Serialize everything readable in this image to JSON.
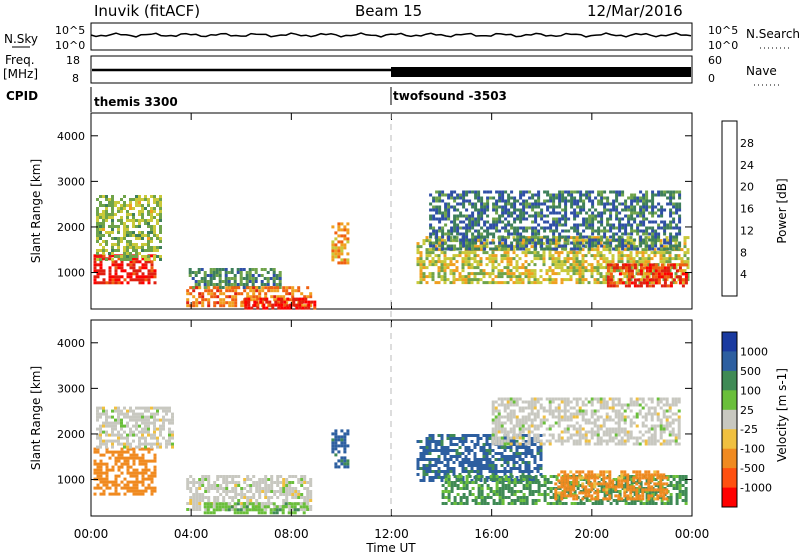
{
  "header": {
    "station": "Inuvik (fitACF)",
    "beam": "Beam 15",
    "date": "12/Mar/2016"
  },
  "top_panels": {
    "nsky_label": "N.Sky",
    "nsearch_label": "N.Search",
    "nsky_ticks": [
      "10^5",
      "10^0"
    ],
    "nsearch_ticks": [
      "10^5",
      "10^0"
    ],
    "freq_label": "Freq.",
    "freq_unit": "[MHz]",
    "freq_ticks": [
      "18",
      "8"
    ],
    "nave_label": "Nave",
    "nave_ticks": [
      "60",
      "0"
    ],
    "cpid_label": "CPID",
    "cpid_segments": [
      {
        "name": "themis 3300",
        "start_hour": 0,
        "end_hour": 12
      },
      {
        "name": "twofsound -3503",
        "start_hour": 12,
        "end_hour": 24
      }
    ]
  },
  "axes": {
    "x_ticks": [
      "00:00",
      "04:00",
      "08:00",
      "12:00",
      "16:00",
      "20:00",
      "00:00"
    ],
    "x_label": "Time UT",
    "y_label": "Slant Range [km]",
    "y_ticks": [
      "1000",
      "2000",
      "3000",
      "4000"
    ]
  },
  "power_colorbar": {
    "label": "Power [dB]",
    "ticks": [
      "4",
      "8",
      "12",
      "16",
      "20",
      "24",
      "28"
    ],
    "colors": [
      "#1a1aff",
      "#2f4fa6",
      "#3e7f5a",
      "#6fa34a",
      "#c9c93a",
      "#f0a020",
      "#f06010",
      "#e02010",
      "#ff0000"
    ]
  },
  "velocity_colorbar": {
    "label": "Velocity [m s-1]",
    "ticks": [
      "1000",
      "500",
      "100",
      "25",
      "-25",
      "-100",
      "-500",
      "-1000"
    ],
    "colors": [
      "#1a3aa0",
      "#2d5fa0",
      "#3f8a55",
      "#6abf3a",
      "#c8c8c0",
      "#f0c040",
      "#f08a20",
      "#ff5010",
      "#ff0000"
    ]
  },
  "chart_data": [
    {
      "type": "heatmap",
      "title": "Power",
      "x": {
        "unit": "hour UT",
        "range": [
          0,
          24
        ]
      },
      "y": {
        "unit": "km",
        "range": [
          200,
          4500
        ]
      },
      "colorbar_range_db": [
        0,
        32
      ],
      "regions": [
        {
          "t0": 0.1,
          "t1": 2.6,
          "r0": 800,
          "r1": 1400,
          "level": 28
        },
        {
          "t0": 0.2,
          "t1": 2.8,
          "r0": 1300,
          "r1": 2700,
          "level": 14
        },
        {
          "t0": 3.9,
          "t1": 7.6,
          "r0": 700,
          "r1": 1100,
          "level": 10
        },
        {
          "t0": 3.8,
          "t1": 8.8,
          "r0": 250,
          "r1": 700,
          "level": 22
        },
        {
          "t0": 6.0,
          "t1": 8.9,
          "r0": 250,
          "r1": 450,
          "level": 28
        },
        {
          "t0": 9.6,
          "t1": 10.2,
          "r0": 1200,
          "r1": 2100,
          "level": 20
        },
        {
          "t0": 13.0,
          "t1": 23.8,
          "r0": 800,
          "r1": 1800,
          "level": 16
        },
        {
          "t0": 13.5,
          "t1": 23.5,
          "r0": 1500,
          "r1": 2800,
          "level": 8
        },
        {
          "t0": 20.6,
          "t1": 23.8,
          "r0": 700,
          "r1": 1200,
          "level": 26
        }
      ]
    },
    {
      "type": "heatmap",
      "title": "Velocity",
      "x": {
        "unit": "hour UT",
        "range": [
          0,
          24
        ]
      },
      "y": {
        "unit": "km",
        "range": [
          200,
          4500
        ]
      },
      "regions": [
        {
          "t0": 0.1,
          "t1": 2.6,
          "r0": 700,
          "r1": 1700,
          "level": -300
        },
        {
          "t0": 0.2,
          "t1": 3.2,
          "r0": 1700,
          "r1": 2600,
          "level": 0
        },
        {
          "t0": 3.8,
          "t1": 8.8,
          "r0": 350,
          "r1": 1100,
          "level": 0
        },
        {
          "t0": 4.5,
          "t1": 8.8,
          "r0": 250,
          "r1": 500,
          "level": 80
        },
        {
          "t0": 9.6,
          "t1": 10.3,
          "r0": 1300,
          "r1": 2100,
          "level": 700
        },
        {
          "t0": 13.0,
          "t1": 18.0,
          "r0": 1000,
          "r1": 2000,
          "level": 700
        },
        {
          "t0": 14.0,
          "t1": 23.8,
          "r0": 500,
          "r1": 1100,
          "level": 120
        },
        {
          "t0": 16.0,
          "t1": 23.5,
          "r0": 1800,
          "r1": 2800,
          "level": 0
        },
        {
          "t0": 18.5,
          "t1": 23.0,
          "r0": 600,
          "r1": 1200,
          "level": -150
        }
      ]
    }
  ]
}
